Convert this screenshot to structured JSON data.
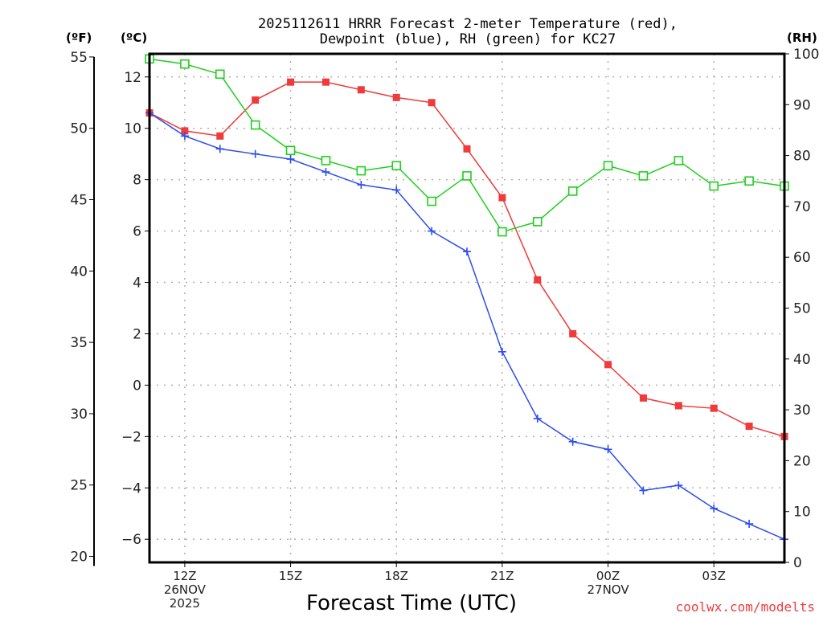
{
  "chart_data": {
    "type": "line",
    "title_lines": [
      "2025112611 HRRR Forecast 2-meter Temperature (red),",
      "Dewpoint (blue), RH (green) for KC27"
    ],
    "xlabel": "Forecast Time (UTC)",
    "x_hours": [
      11,
      12,
      13,
      14,
      15,
      16,
      17,
      18,
      19,
      20,
      21,
      22,
      23,
      24,
      25,
      26,
      27,
      28,
      29
    ],
    "x_ticks": [
      {
        "hour": 12,
        "lines": [
          "12Z",
          "26NOV",
          "2025"
        ]
      },
      {
        "hour": 15,
        "lines": [
          "15Z"
        ]
      },
      {
        "hour": 18,
        "lines": [
          "18Z"
        ]
      },
      {
        "hour": 21,
        "lines": [
          "21Z"
        ]
      },
      {
        "hour": 24,
        "lines": [
          "00Z",
          "27NOV"
        ]
      },
      {
        "hour": 27,
        "lines": [
          "03Z"
        ]
      }
    ],
    "x_range": [
      11,
      29
    ],
    "axes": {
      "fahrenheit": {
        "label": "(ºF)",
        "ticks": [
          20,
          25,
          30,
          35,
          40,
          45,
          50,
          55
        ]
      },
      "celsius": {
        "label": "(ºC)",
        "ticks": [
          -6,
          -4,
          -2,
          0,
          2,
          4,
          6,
          8,
          10,
          12
        ],
        "ylim": [
          -6.9,
          12.9
        ]
      },
      "rh": {
        "label": "(RH)",
        "ticks": [
          0,
          10,
          20,
          30,
          40,
          50,
          60,
          70,
          80,
          90,
          100
        ],
        "ylim": [
          0,
          100
        ]
      }
    },
    "grid": true,
    "series": [
      {
        "name": "Temperature",
        "axis": "celsius",
        "color": "#ef3b3b",
        "marker": "filled-square",
        "values": [
          10.6,
          9.9,
          9.7,
          11.1,
          11.8,
          11.8,
          11.5,
          11.2,
          11.0,
          9.2,
          7.3,
          4.1,
          2.0,
          0.8,
          -0.5,
          -0.8,
          -0.9,
          -1.6,
          -2.0
        ]
      },
      {
        "name": "Dewpoint",
        "axis": "celsius",
        "color": "#2b4cf0",
        "marker": "plus",
        "values": [
          10.6,
          9.7,
          9.2,
          9.0,
          8.8,
          8.3,
          7.8,
          7.6,
          6.0,
          5.2,
          1.3,
          -1.3,
          -2.2,
          -2.5,
          -4.1,
          -3.9,
          -4.8,
          -5.4,
          -6.0
        ]
      },
      {
        "name": "RH",
        "axis": "rh",
        "color": "#1ecf1e",
        "marker": "open-square",
        "values": [
          99,
          98,
          96,
          86,
          81,
          79,
          77,
          78,
          71,
          76,
          65,
          67,
          73,
          78,
          76,
          79,
          74,
          75,
          74
        ]
      }
    ],
    "credit": "coolwx.com/modelts"
  }
}
